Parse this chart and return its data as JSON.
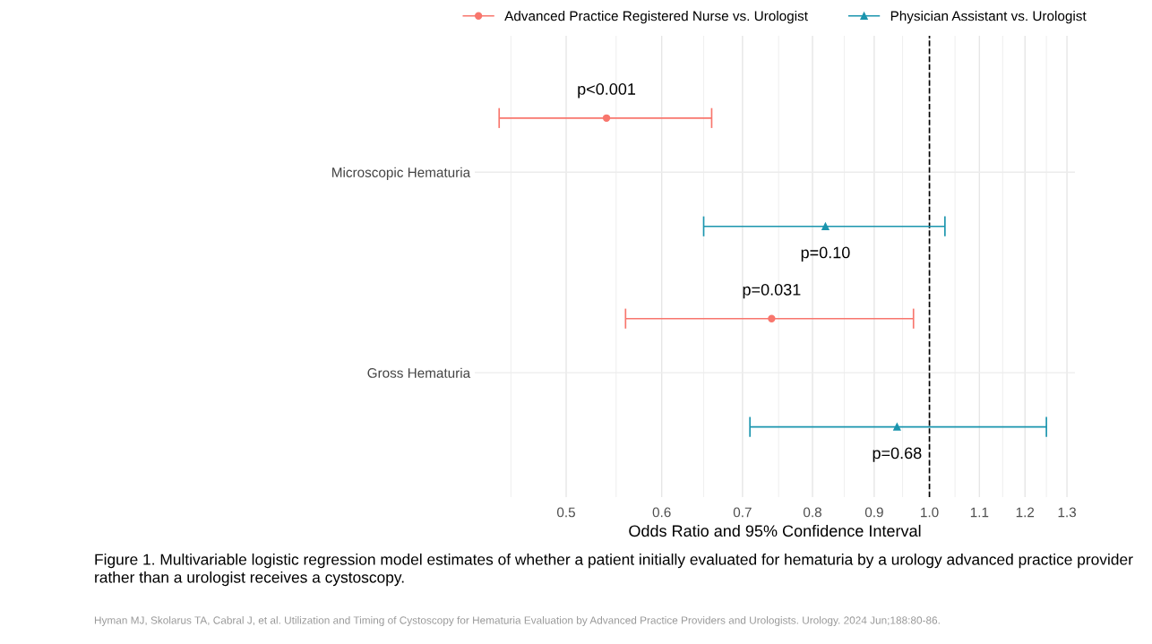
{
  "chart_data": {
    "type": "scatter",
    "orientation": "horizontal",
    "categories": [
      "Microscopic Hematuria",
      "Gross Hematuria"
    ],
    "series": [
      {
        "name": "Advanced Practice Registered Nurse vs. Urologist",
        "color": "#f8766d",
        "marker": "circle",
        "values": [
          0.54,
          0.74
        ],
        "errors": [
          [
            0.44,
            0.66
          ],
          [
            0.56,
            0.97
          ]
        ]
      },
      {
        "name": "Physician Assistant vs. Urologist",
        "color": "#1b95ae",
        "marker": "triangle",
        "values": [
          0.82,
          0.94
        ],
        "errors": [
          [
            0.65,
            1.03
          ],
          [
            0.71,
            1.25
          ]
        ]
      }
    ],
    "xlabel": "Odds Ratio and 95% Confidence Interval",
    "log": "x",
    "xlim": [
      0.42,
      1.32
    ],
    "xticks": [
      0.5,
      0.6,
      0.7,
      0.8,
      0.9,
      {
        "value": 1.0,
        "label": "1.0"
      },
      1.1,
      1.2,
      1.3
    ],
    "ref_lines": [
      {
        "axis": "x",
        "value": 1.0,
        "color": "#000000",
        "line_style": "dashed"
      }
    ],
    "grid": true,
    "legend": "top",
    "annotations": [
      "p<0.001",
      "p=0.10",
      "p=0.031",
      "p=0.68",
      "Figure 1. Multivariable logistic regression model estimates of whether a patient initially evaluated for hematuria by a urology advanced practice provider rather than a urologist receives a cystoscopy.",
      "Hyman MJ, Skolarus TA, Cabral J, et al. Utilization and Timing of Cystoscopy for Hematuria Evaluation by Advanced Practice Providers and Urologists. Urology. 2024 Jun;188:80-86."
    ]
  }
}
